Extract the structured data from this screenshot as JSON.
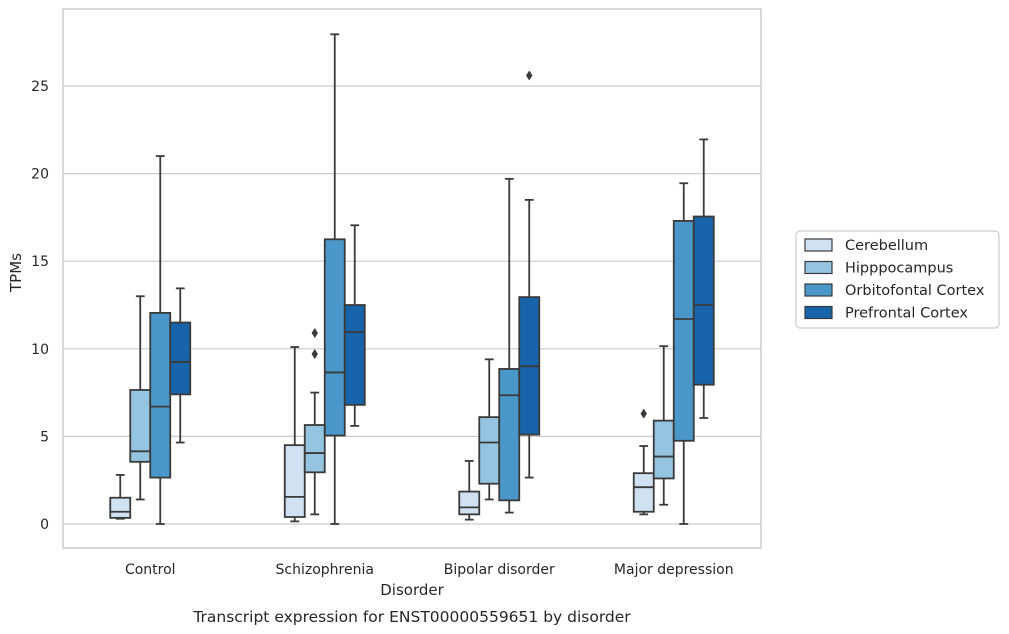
{
  "caption": "Transcript expression for ENST00000559651 by disorder",
  "chart_data": {
    "type": "boxplot",
    "title": "",
    "xlabel": "Disorder",
    "ylabel": "TPMs",
    "ylim": [
      -1.3,
      29.2
    ],
    "yticks": [
      0,
      5,
      10,
      15,
      20,
      25
    ],
    "grid": "horizontal",
    "legend_position": "right",
    "categories": [
      "Control",
      "Schizophrenia",
      "Bipolar disorder",
      "Major depression"
    ],
    "series": [
      {
        "name": "Cerebellum",
        "color": "#d0e1f2",
        "boxes": [
          {
            "whislo": 0.3,
            "q1": 0.35,
            "med": 0.7,
            "q3": 1.5,
            "whishi": 2.8,
            "fliers": []
          },
          {
            "whislo": 0.15,
            "q1": 0.4,
            "med": 1.55,
            "q3": 4.5,
            "whishi": 10.1,
            "fliers": []
          },
          {
            "whislo": 0.25,
            "q1": 0.55,
            "med": 0.95,
            "q3": 1.85,
            "whishi": 3.6,
            "fliers": []
          },
          {
            "whislo": 0.55,
            "q1": 0.7,
            "med": 2.1,
            "q3": 2.9,
            "whishi": 4.45,
            "fliers": [
              6.3
            ]
          }
        ]
      },
      {
        "name": "Hipppocampus",
        "color": "#94c4df",
        "boxes": [
          {
            "whislo": 1.4,
            "q1": 3.55,
            "med": 4.15,
            "q3": 7.65,
            "whishi": 13.0,
            "fliers": []
          },
          {
            "whislo": 0.55,
            "q1": 2.95,
            "med": 4.05,
            "q3": 5.65,
            "whishi": 7.5,
            "fliers": [
              9.7,
              10.9
            ]
          },
          {
            "whislo": 1.4,
            "q1": 2.3,
            "med": 4.65,
            "q3": 6.1,
            "whishi": 9.4,
            "fliers": []
          },
          {
            "whislo": 1.1,
            "q1": 2.6,
            "med": 3.85,
            "q3": 5.9,
            "whishi": 10.15,
            "fliers": []
          }
        ]
      },
      {
        "name": "Orbitofontal Cortex",
        "color": "#4a98c9",
        "boxes": [
          {
            "whislo": 0.0,
            "q1": 2.65,
            "med": 6.7,
            "q3": 12.05,
            "whishi": 21.0,
            "fliers": []
          },
          {
            "whislo": 0.0,
            "q1": 5.05,
            "med": 8.65,
            "q3": 16.25,
            "whishi": 27.95,
            "fliers": []
          },
          {
            "whislo": 0.65,
            "q1": 1.35,
            "med": 7.35,
            "q3": 8.85,
            "whishi": 19.7,
            "fliers": []
          },
          {
            "whislo": 0.0,
            "q1": 4.75,
            "med": 11.7,
            "q3": 17.3,
            "whishi": 19.45,
            "fliers": []
          }
        ]
      },
      {
        "name": "Prefrontal Cortex",
        "color": "#1764ab",
        "boxes": [
          {
            "whislo": 4.65,
            "q1": 7.4,
            "med": 9.25,
            "q3": 11.5,
            "whishi": 13.45,
            "fliers": []
          },
          {
            "whislo": 5.6,
            "q1": 6.8,
            "med": 10.95,
            "q3": 12.5,
            "whishi": 17.05,
            "fliers": []
          },
          {
            "whislo": 2.65,
            "q1": 5.1,
            "med": 9.0,
            "q3": 12.95,
            "whishi": 18.5,
            "fliers": [
              25.6
            ]
          },
          {
            "whislo": 6.05,
            "q1": 7.95,
            "med": 12.5,
            "q3": 17.55,
            "whishi": 21.95,
            "fliers": []
          }
        ]
      }
    ]
  }
}
